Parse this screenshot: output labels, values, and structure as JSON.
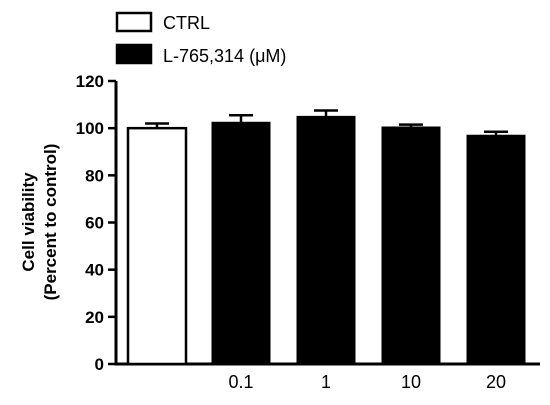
{
  "chart_data": {
    "type": "bar",
    "categories": [
      "",
      "0.1",
      "1",
      "10",
      "20"
    ],
    "series": [
      {
        "name": "CTRL",
        "color": "#ffffff",
        "values": [
          100,
          null,
          null,
          null,
          null
        ],
        "errors": [
          2,
          null,
          null,
          null,
          null
        ]
      },
      {
        "name": "L-765,314 (μM)",
        "color": "#000000",
        "values": [
          null,
          102.5,
          105,
          100.5,
          97
        ],
        "errors": [
          null,
          3,
          2.5,
          1,
          1.5
        ]
      }
    ],
    "ylabel_line1": "Cell viability",
    "ylabel_line2": "(Percent to control)",
    "ylim": [
      0,
      120
    ],
    "yticks": [
      "0",
      "20",
      "40",
      "60",
      "80",
      "100",
      "120"
    ],
    "legend_position": "top-left",
    "grid": false
  }
}
